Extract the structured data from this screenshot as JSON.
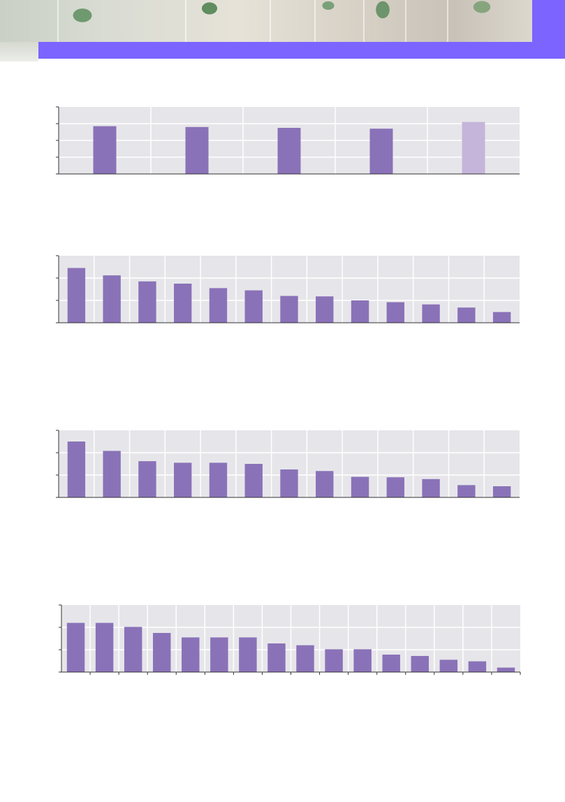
{
  "colors": {
    "banner_accent": "#7b64ff",
    "bar": "#8a72b8",
    "bar_highlight": "#c5b5da",
    "plot_background": "#e6e6ea",
    "gridline": "#ffffff",
    "axis": "#333333"
  },
  "banner": {
    "image": "plant-leaves-photo"
  },
  "chart_data": [
    {
      "type": "bar",
      "title": "",
      "xlabel": "",
      "ylabel": "",
      "ylim": [
        0,
        4
      ],
      "grid": true,
      "categories": [
        "",
        "",
        "",
        "",
        ""
      ],
      "values": [
        2.85,
        2.8,
        2.75,
        2.7,
        3.1
      ],
      "highlight_index": 4
    },
    {
      "type": "bar",
      "title": "",
      "xlabel": "",
      "ylabel": "",
      "ylim": [
        0,
        3
      ],
      "grid": true,
      "categories": [
        "",
        "",
        "",
        "",
        "",
        "",
        "",
        "",
        "",
        "",
        "",
        "",
        ""
      ],
      "values": [
        2.45,
        2.12,
        1.85,
        1.75,
        1.55,
        1.45,
        1.2,
        1.18,
        1.0,
        0.92,
        0.82,
        0.68,
        0.48
      ]
    },
    {
      "type": "bar",
      "title": "",
      "xlabel": "",
      "ylabel": "",
      "ylim": [
        0,
        3
      ],
      "grid": true,
      "categories": [
        "",
        "",
        "",
        "",
        "",
        "",
        "",
        "",
        "",
        "",
        "",
        "",
        ""
      ],
      "values": [
        2.5,
        2.08,
        1.62,
        1.55,
        1.55,
        1.5,
        1.25,
        1.18,
        0.92,
        0.9,
        0.82,
        0.55,
        0.5
      ]
    },
    {
      "type": "bar",
      "title": "",
      "xlabel": "",
      "ylabel": "",
      "ylim": [
        0,
        3
      ],
      "grid": true,
      "categories": [
        "",
        "",
        "",
        "",
        "",
        "",
        "",
        "",
        "",
        "",
        "",
        "",
        "",
        "",
        "",
        ""
      ],
      "values": [
        2.2,
        2.2,
        2.02,
        1.75,
        1.55,
        1.55,
        1.55,
        1.28,
        1.2,
        1.02,
        1.02,
        0.78,
        0.72,
        0.55,
        0.48,
        0.2
      ]
    }
  ]
}
